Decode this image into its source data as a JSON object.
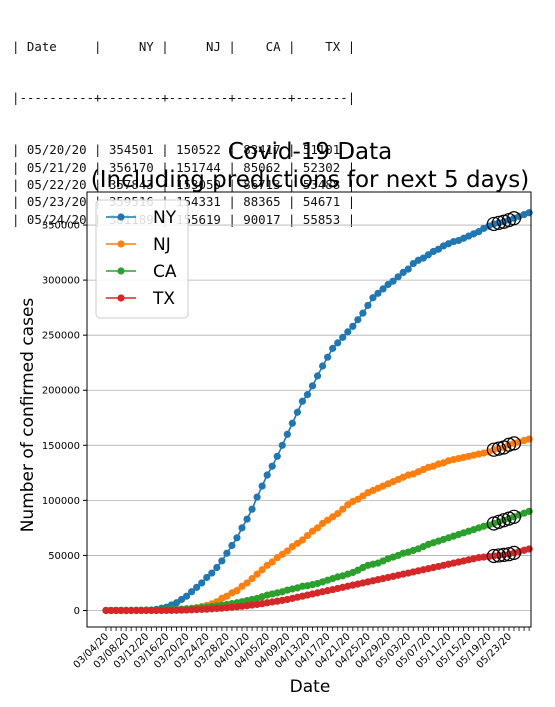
{
  "table": {
    "headers": [
      "Date",
      "NY",
      "NJ",
      "CA",
      "TX"
    ],
    "rows": [
      [
        "05/20/20",
        "354501",
        "150522",
        "83417",
        "51101"
      ],
      [
        "05/21/20",
        "356170",
        "151744",
        "85062",
        "52302"
      ],
      [
        "05/22/20",
        "357843",
        "153050",
        "86713",
        "53488"
      ],
      [
        "05/23/20",
        "359516",
        "154331",
        "88365",
        "54671"
      ],
      [
        "05/24/20",
        "361189",
        "155619",
        "90017",
        "55853"
      ]
    ]
  },
  "chart_data": {
    "type": "line",
    "title": [
      "Covid-19 Data",
      "(Including predictions for next 5 days)"
    ],
    "xlabel": "Date",
    "ylabel": "Number of confirmed cases",
    "ylim": [
      -15000,
      380000
    ],
    "yticks": [
      0,
      50000,
      100000,
      150000,
      200000,
      250000,
      300000,
      350000
    ],
    "grid": "horizontal",
    "legend_position": "top-left",
    "x_tick_labels": [
      "03/04/20",
      "03/08/20",
      "03/12/20",
      "03/16/20",
      "03/20/20",
      "03/24/20",
      "03/28/20",
      "04/01/20",
      "04/05/20",
      "04/09/20",
      "04/13/20",
      "04/17/20",
      "04/21/20",
      "04/25/20",
      "04/29/20",
      "05/03/20",
      "05/07/20",
      "05/11/20",
      "05/15/20",
      "05/19/20",
      "05/23/20"
    ],
    "x_start": "03/04/20",
    "x_end": "05/24/20",
    "prediction_dates": [
      "05/20/20",
      "05/21/20",
      "05/22/20",
      "05/23/20",
      "05/24/20"
    ],
    "series": [
      {
        "name": "NY",
        "color": "#1f77b4",
        "values": [
          0,
          0,
          0,
          0,
          0,
          0,
          0,
          100,
          250,
          500,
          1000,
          2000,
          3000,
          5000,
          7000,
          10000,
          13000,
          17000,
          21000,
          25000,
          30000,
          34000,
          39000,
          45000,
          52000,
          59000,
          66000,
          75000,
          83000,
          92000,
          103000,
          113000,
          123000,
          131000,
          140000,
          150000,
          160000,
          170000,
          180000,
          190000,
          196000,
          204000,
          213000,
          222000,
          230000,
          238000,
          243000,
          248000,
          253000,
          258000,
          264000,
          270000,
          277000,
          284000,
          288000,
          292000,
          296000,
          299000,
          303000,
          307000,
          310000,
          315000,
          318000,
          320000,
          323000,
          326000,
          328000,
          331000,
          333000,
          335000,
          336000,
          338000,
          340000,
          342000,
          344000,
          347000,
          349000,
          351000,
          352000,
          353000,
          354501,
          356170,
          357843,
          359516,
          361189
        ]
      },
      {
        "name": "NJ",
        "color": "#ff7f0e",
        "values": [
          0,
          0,
          0,
          0,
          0,
          0,
          0,
          0,
          0,
          0,
          0,
          0,
          0,
          100,
          300,
          600,
          1000,
          1500,
          2500,
          3500,
          4500,
          6000,
          8000,
          11000,
          13000,
          16000,
          18000,
          22000,
          25000,
          29000,
          33000,
          37000,
          41000,
          44000,
          48000,
          51000,
          54000,
          58000,
          61000,
          64000,
          68000,
          72000,
          75000,
          79000,
          82000,
          85000,
          88000,
          92000,
          96000,
          99000,
          101000,
          104000,
          107000,
          109000,
          111000,
          113000,
          115000,
          117000,
          119000,
          121000,
          123000,
          124000,
          126000,
          128000,
          130000,
          131000,
          133000,
          134000,
          136000,
          137000,
          138000,
          139000,
          140000,
          141000,
          142000,
          143000,
          144000,
          146000,
          147000,
          148000,
          150522,
          151744,
          153050,
          154331,
          155619
        ]
      },
      {
        "name": "CA",
        "color": "#2ca02c",
        "values": [
          50,
          60,
          80,
          100,
          120,
          150,
          200,
          250,
          300,
          350,
          400,
          500,
          700,
          900,
          1100,
          1300,
          1600,
          1900,
          2300,
          2700,
          3000,
          3600,
          4200,
          4800,
          5500,
          6200,
          7000,
          8000,
          9000,
          10000,
          11000,
          12500,
          14000,
          15000,
          16000,
          17000,
          18500,
          19500,
          20500,
          22000,
          22500,
          23500,
          24500,
          26000,
          27500,
          29000,
          30500,
          31500,
          33000,
          34500,
          36500,
          39000,
          41000,
          42000,
          43000,
          45000,
          47000,
          48500,
          50000,
          52000,
          53000,
          54500,
          56000,
          58000,
          60000,
          61500,
          63000,
          64500,
          66000,
          67500,
          69000,
          70500,
          72000,
          73500,
          75000,
          76500,
          77500,
          79000,
          80500,
          82000,
          83417,
          85062,
          86713,
          88365,
          90017
        ]
      },
      {
        "name": "TX",
        "color": "#d62728",
        "values": [
          0,
          0,
          0,
          0,
          0,
          0,
          0,
          0,
          0,
          0,
          0,
          50,
          100,
          150,
          200,
          300,
          400,
          600,
          800,
          1000,
          1200,
          1500,
          1800,
          2100,
          2500,
          2900,
          3300,
          3800,
          4300,
          4900,
          5500,
          6200,
          7000,
          7700,
          8400,
          9200,
          10000,
          11000,
          12000,
          13000,
          14000,
          15000,
          16000,
          17000,
          18000,
          19000,
          20000,
          21000,
          22000,
          23000,
          24000,
          25000,
          26000,
          27000,
          28000,
          29000,
          30000,
          31000,
          32000,
          33000,
          34000,
          35000,
          36000,
          37000,
          38000,
          39000,
          40000,
          41000,
          42000,
          43000,
          44000,
          45000,
          46000,
          47000,
          48000,
          48500,
          49000,
          49500,
          50000,
          50500,
          51101,
          52302,
          53488,
          54671,
          55853
        ]
      }
    ]
  }
}
